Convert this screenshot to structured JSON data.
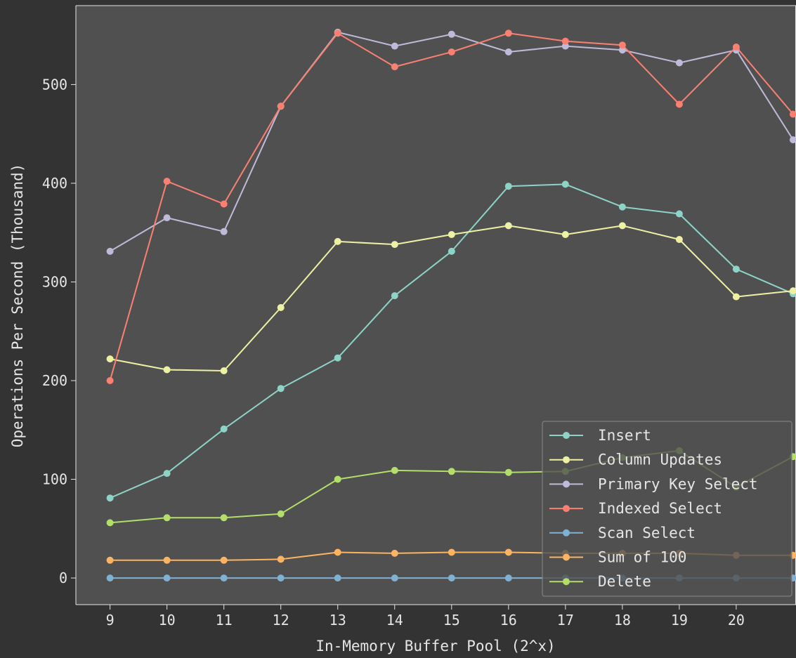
{
  "chart_data": {
    "type": "line",
    "title": "",
    "xlabel": "In-Memory Buffer Pool (2^x)",
    "ylabel": "Operations Per Second (Thousand)",
    "x": [
      9,
      10,
      11,
      12,
      13,
      14,
      15,
      16,
      17,
      18,
      19,
      20,
      21
    ],
    "x_ticks": [
      "9",
      "10",
      "11",
      "12",
      "13",
      "14",
      "15",
      "16",
      "17",
      "18",
      "19",
      "20"
    ],
    "y_ticks": [
      "0",
      "100",
      "200",
      "300",
      "400",
      "500"
    ],
    "xlim": [
      8.4,
      21.05
    ],
    "ylim": [
      -27,
      580
    ],
    "grid": false,
    "legend_position": "lower-right",
    "series": [
      {
        "name": "Insert",
        "color": "#8dd3c7",
        "values": [
          81,
          106,
          151,
          192,
          223,
          286,
          331,
          397,
          399,
          376,
          369,
          313,
          288
        ]
      },
      {
        "name": "Column Updates",
        "color": "#eef0a4",
        "values": [
          222,
          211,
          210,
          274,
          341,
          338,
          348,
          357,
          348,
          357,
          343,
          285,
          291
        ]
      },
      {
        "name": "Primary Key Select",
        "color": "#bebada",
        "values": [
          331,
          365,
          351,
          478,
          553,
          539,
          551,
          533,
          539,
          535,
          522,
          535,
          444
        ]
      },
      {
        "name": "Indexed Select",
        "color": "#fa8072",
        "values": [
          200,
          402,
          379,
          478,
          552,
          518,
          533,
          552,
          544,
          540,
          480,
          538,
          470
        ]
      },
      {
        "name": "Scan Select",
        "color": "#81b1d2",
        "values": [
          0,
          0,
          0,
          0,
          0,
          0,
          0,
          0,
          0,
          0,
          0,
          0,
          0
        ]
      },
      {
        "name": "Sum of 100",
        "color": "#fdb462",
        "values": [
          18,
          18,
          18,
          19,
          26,
          25,
          26,
          26,
          25,
          25,
          25,
          23,
          23
        ]
      },
      {
        "name": "Delete",
        "color": "#b3de69",
        "values": [
          56,
          61,
          61,
          65,
          100,
          109,
          108,
          107,
          108,
          122,
          129,
          92,
          123
        ]
      }
    ]
  }
}
